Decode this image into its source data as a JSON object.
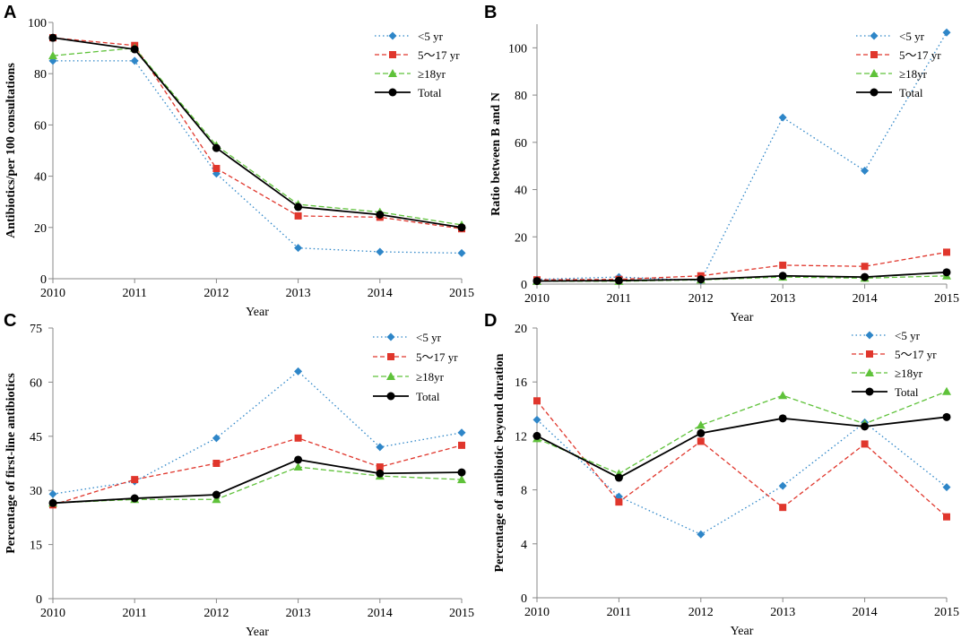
{
  "figure": {
    "colors": {
      "under5": "#2E86C8",
      "age5_17": "#E0362C",
      "adult": "#5FC23A",
      "total": "#000000",
      "axis": "#888888"
    }
  },
  "chart_data": [
    {
      "panel": "A",
      "type": "line",
      "ylabel": "Antibiotics/per 100 consultations",
      "xlabel": "Year",
      "ylim": [
        0,
        100
      ],
      "yticks": [
        0,
        20,
        40,
        60,
        80,
        100
      ],
      "categories": [
        "2010",
        "2011",
        "2012",
        "2013",
        "2014",
        "2015"
      ],
      "series": [
        {
          "name": "<5 yr",
          "values": [
            85,
            85,
            41,
            12,
            10.5,
            10
          ]
        },
        {
          "name": "5～17 yr",
          "values": [
            94,
            91,
            43,
            24.5,
            24,
            19.5
          ]
        },
        {
          "name": "≥18yr",
          "values": [
            87,
            90,
            52,
            29,
            26,
            21
          ]
        },
        {
          "name": "Total",
          "values": [
            94,
            89.5,
            51,
            28,
            25,
            20
          ]
        }
      ]
    },
    {
      "panel": "B",
      "type": "line",
      "ylabel": "Ratio between B and N",
      "xlabel": "Year",
      "ylim": [
        0,
        110
      ],
      "yticks": [
        0,
        20,
        40,
        60,
        80,
        100
      ],
      "categories": [
        "2010",
        "2011",
        "2012",
        "2013",
        "2014",
        "2015"
      ],
      "series": [
        {
          "name": "<5 yr",
          "values": [
            2,
            3,
            1.5,
            70.5,
            48,
            106.5
          ]
        },
        {
          "name": "5～17 yr",
          "values": [
            1.8,
            2,
            3.5,
            8,
            7.5,
            13.5
          ]
        },
        {
          "name": "≥18yr",
          "values": [
            1.2,
            1.2,
            1.8,
            3,
            2.5,
            3.5
          ]
        },
        {
          "name": "Total",
          "values": [
            1.3,
            1.5,
            2,
            3.5,
            3,
            5
          ]
        }
      ]
    },
    {
      "panel": "C",
      "type": "line",
      "ylabel": "Percentage of first-line antibiotics",
      "xlabel": "Year",
      "ylim": [
        0,
        75
      ],
      "yticks": [
        0,
        15,
        30,
        45,
        60,
        75
      ],
      "categories": [
        "2010",
        "2011",
        "2012",
        "2013",
        "2014",
        "2015"
      ],
      "series": [
        {
          "name": "<5 yr",
          "values": [
            29,
            32.5,
            44.5,
            63,
            42,
            46
          ]
        },
        {
          "name": "5～17 yr",
          "values": [
            26,
            33,
            37.5,
            44.5,
            36.5,
            42.5
          ]
        },
        {
          "name": "≥18yr",
          "values": [
            26.5,
            27.5,
            27.5,
            36.5,
            34,
            33
          ]
        },
        {
          "name": "Total",
          "values": [
            26.5,
            27.8,
            28.8,
            38.5,
            34.7,
            35
          ]
        }
      ]
    },
    {
      "panel": "D",
      "type": "line",
      "ylabel": "Percentage of antibiotic beyond duration",
      "xlabel": "Year",
      "ylim": [
        0,
        20
      ],
      "yticks": [
        0,
        4,
        8,
        12,
        16,
        20
      ],
      "categories": [
        "2010",
        "2011",
        "2012",
        "2013",
        "2014",
        "2015"
      ],
      "series": [
        {
          "name": "<5 yr",
          "values": [
            13.2,
            7.5,
            4.7,
            8.3,
            13,
            8.2
          ]
        },
        {
          "name": "5～17 yr",
          "values": [
            14.6,
            7.1,
            11.6,
            6.7,
            11.4,
            6
          ]
        },
        {
          "name": "≥18yr",
          "values": [
            11.8,
            9.2,
            12.8,
            15,
            12.9,
            15.3
          ]
        },
        {
          "name": "Total",
          "values": [
            12,
            8.9,
            12.2,
            13.3,
            12.7,
            13.4
          ]
        }
      ]
    }
  ]
}
